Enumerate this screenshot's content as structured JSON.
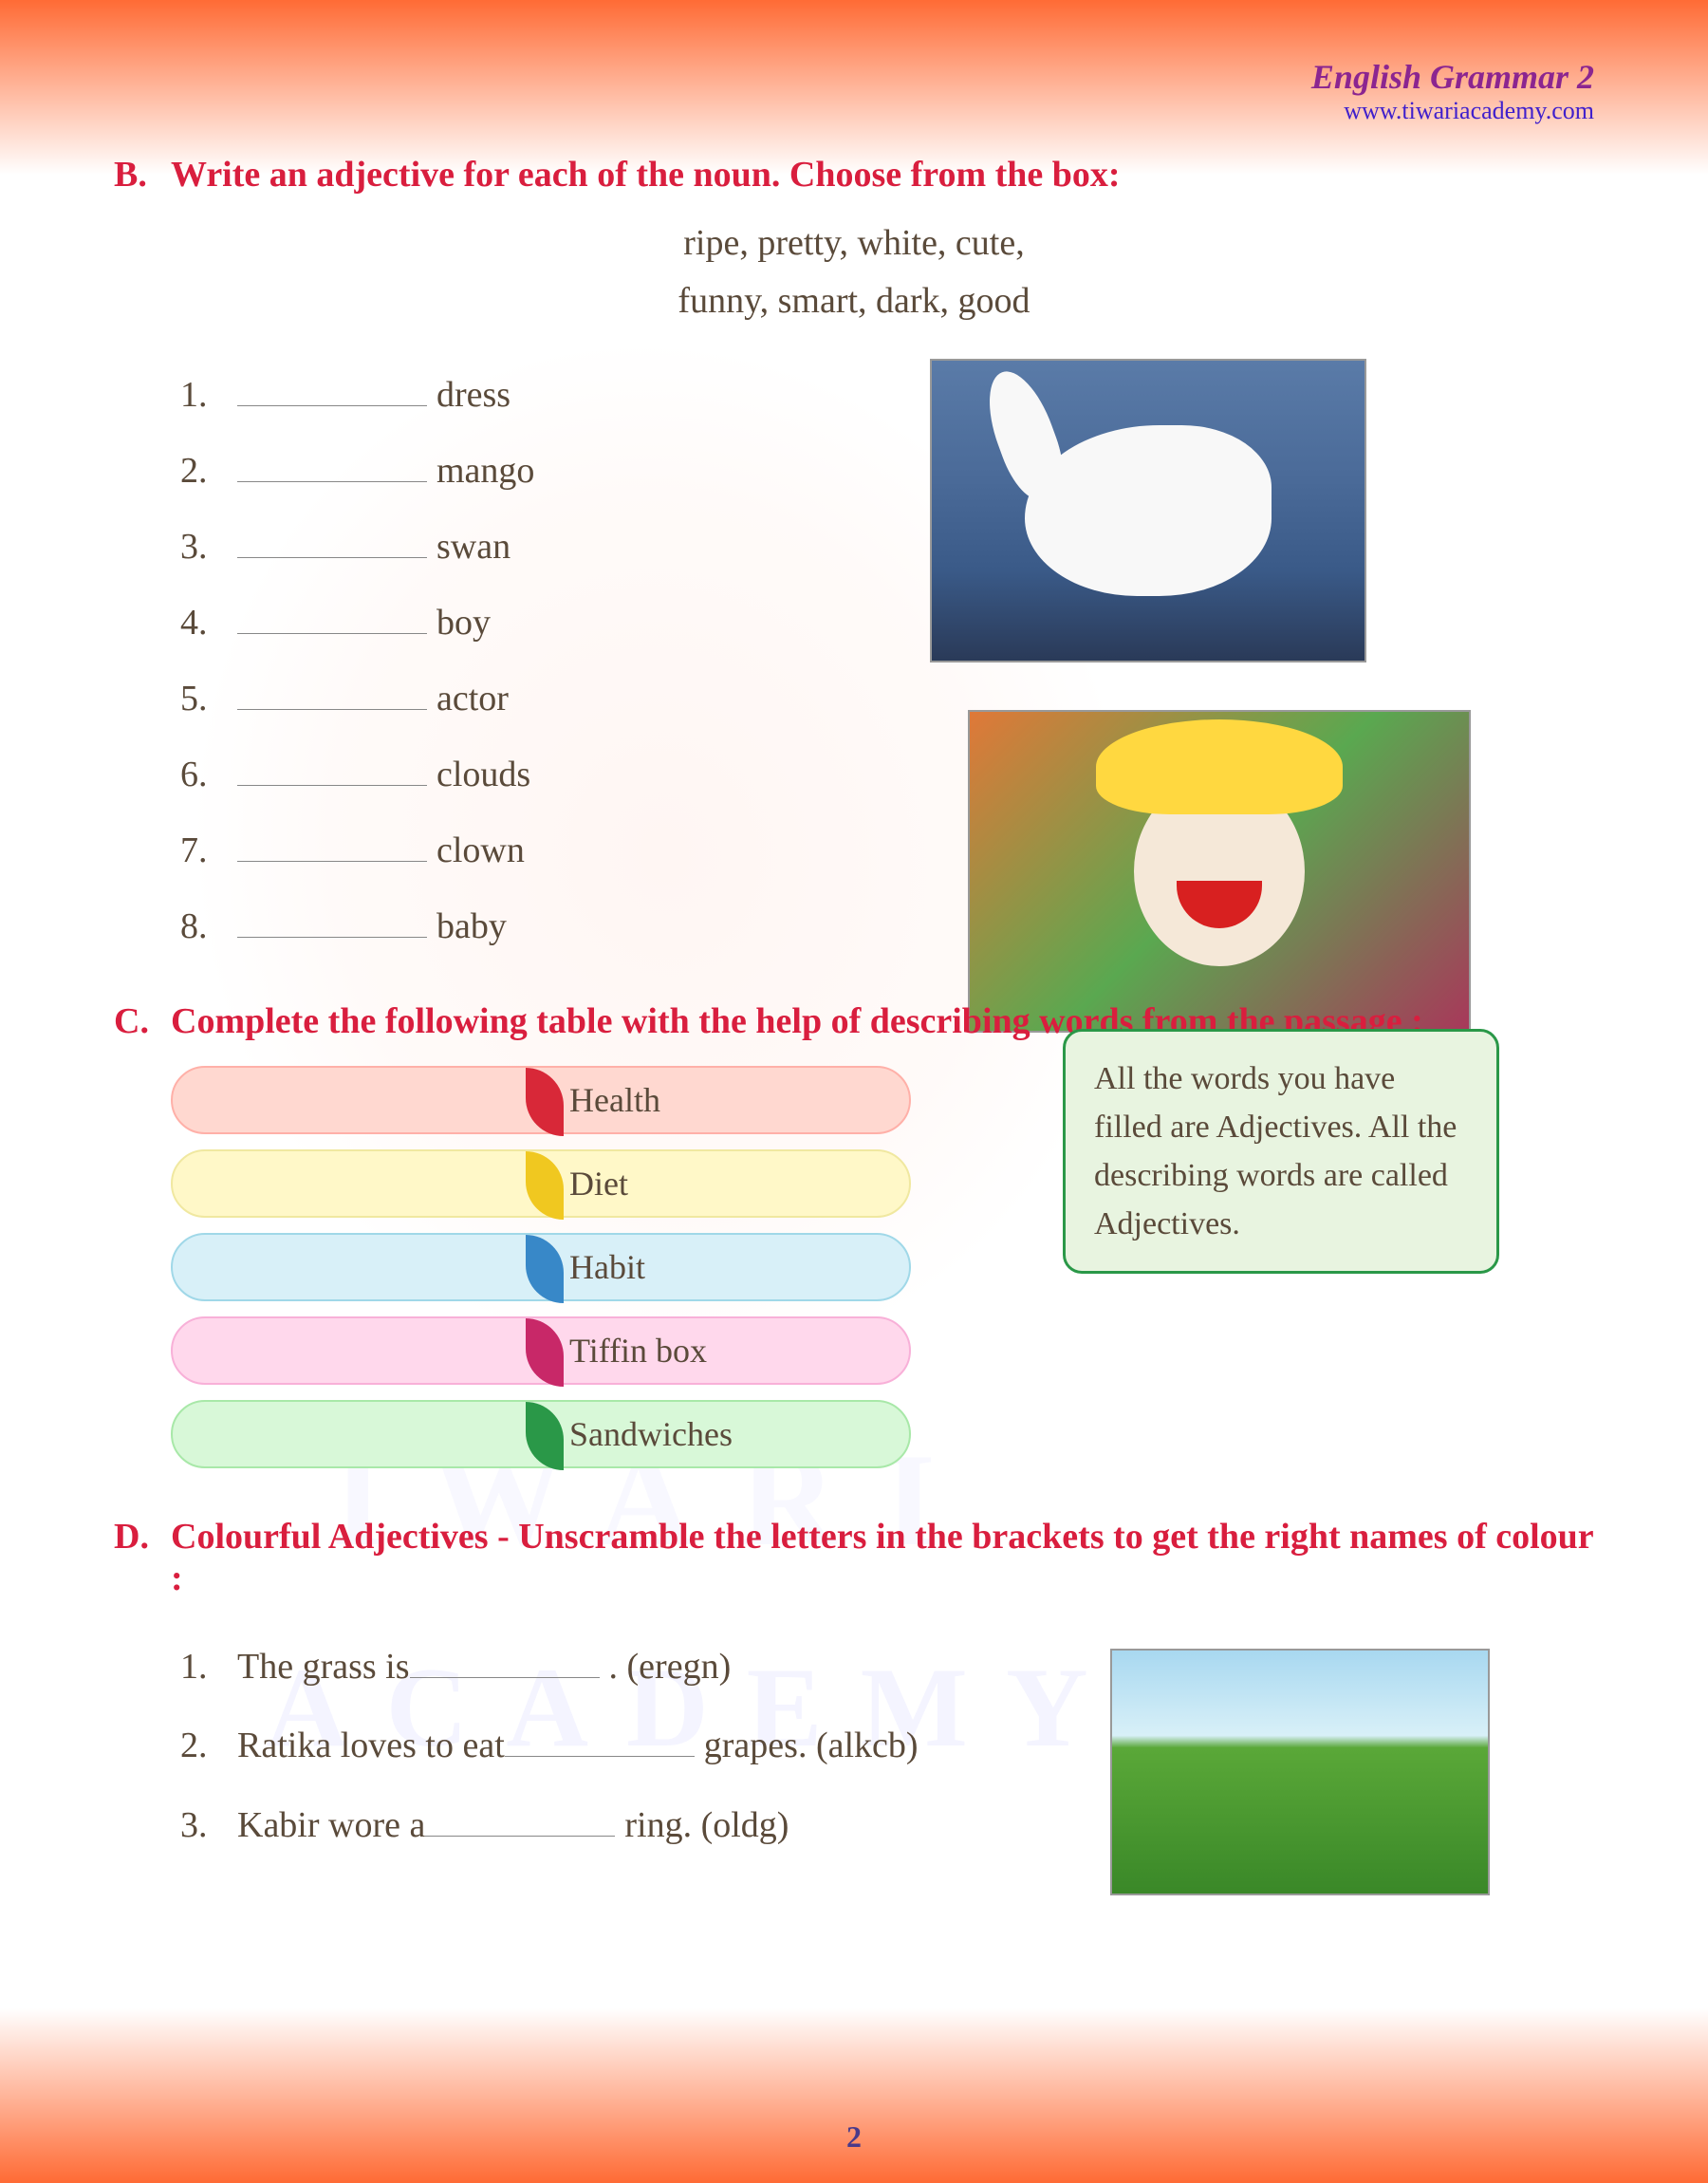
{
  "header": {
    "title": "English Grammar 2",
    "url": "www.tiwariacademy.com"
  },
  "watermark": {
    "text1": "IWARI",
    "text2": "ACADEMY"
  },
  "sectionB": {
    "letter": "B.",
    "title": "Write an adjective for each of the noun. Choose from the box:",
    "words_line1": "ripe,    pretty,    white,    cute,",
    "words_line2": "funny,    smart,    dark,    good",
    "items": [
      {
        "num": "1.",
        "noun": "dress"
      },
      {
        "num": "2.",
        "noun": "mango"
      },
      {
        "num": "3.",
        "noun": "swan"
      },
      {
        "num": "4.",
        "noun": "boy"
      },
      {
        "num": "5.",
        "noun": "actor"
      },
      {
        "num": "6.",
        "noun": "clouds"
      },
      {
        "num": "7.",
        "noun": "clown"
      },
      {
        "num": "8.",
        "noun": "baby"
      }
    ]
  },
  "sectionC": {
    "letter": "C.",
    "title": "Complete the following table with the help of describing words from the passage :",
    "rows": [
      {
        "label": "Health",
        "color": "health"
      },
      {
        "label": "Diet",
        "color": "diet"
      },
      {
        "label": "Habit",
        "color": "habit"
      },
      {
        "label": "Tiffin box",
        "color": "tiffin"
      },
      {
        "label": "Sandwiches",
        "color": "sandwich"
      }
    ],
    "note": "All the words you have filled are Adjectives. All the describing words are called Adjectives."
  },
  "sectionD": {
    "letter": "D.",
    "title": "Colourful Adjectives - Unscramble the letters in the brackets to get the right names of colour  :",
    "items": [
      {
        "num": "1.",
        "before": "The grass is ",
        "after": " . (eregn)"
      },
      {
        "num": "2.",
        "before": "Ratika loves to eat ",
        "after": " grapes. (alkcb)"
      },
      {
        "num": "3.",
        "before": "Kabir wore a ",
        "after": " ring. (oldg)"
      }
    ]
  },
  "pageNumber": "2"
}
